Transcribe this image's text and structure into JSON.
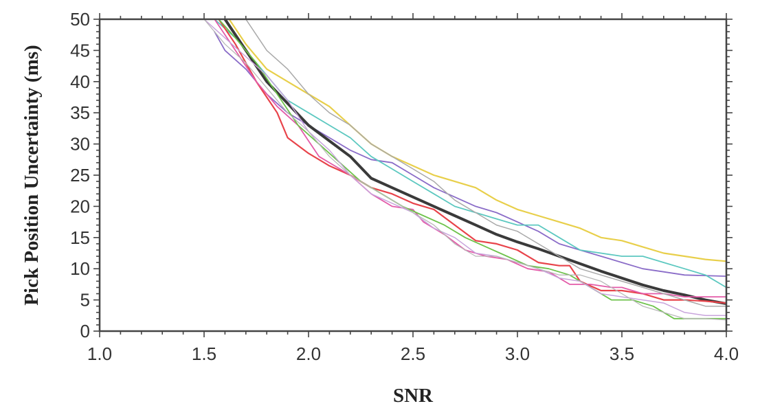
{
  "chart_data": {
    "type": "line",
    "title": "",
    "xlabel": "SNR",
    "ylabel": "Pick Position Uncertainty (ms)",
    "xlim": [
      1.0,
      4.0
    ],
    "ylim": [
      0,
      50
    ],
    "x_ticks": [
      "1.0",
      "1.5",
      "2.0",
      "2.5",
      "3.0",
      "3.5",
      "4.0"
    ],
    "y_ticks": [
      "0",
      "5",
      "10",
      "15",
      "20",
      "25",
      "30",
      "35",
      "40",
      "45",
      "50"
    ],
    "grid": false,
    "legend": "none",
    "series": [
      {
        "color": "#e8cf4a",
        "width": 2.2,
        "points": [
          [
            1.62,
            50
          ],
          [
            1.7,
            46
          ],
          [
            1.8,
            42
          ],
          [
            1.9,
            40
          ],
          [
            2.0,
            38
          ],
          [
            2.1,
            36
          ],
          [
            2.2,
            33
          ],
          [
            2.3,
            30
          ],
          [
            2.4,
            28
          ],
          [
            2.5,
            26.5
          ],
          [
            2.6,
            25
          ],
          [
            2.7,
            24
          ],
          [
            2.8,
            23
          ],
          [
            2.9,
            21
          ],
          [
            3.0,
            19.5
          ],
          [
            3.1,
            18.5
          ],
          [
            3.2,
            17.5
          ],
          [
            3.3,
            16.5
          ],
          [
            3.4,
            15
          ],
          [
            3.5,
            14.5
          ],
          [
            3.6,
            13.5
          ],
          [
            3.7,
            12.5
          ],
          [
            3.8,
            12
          ],
          [
            3.9,
            11.5
          ],
          [
            4.0,
            11.2
          ]
        ]
      },
      {
        "color": "#8a6cc8",
        "width": 1.8,
        "points": [
          [
            1.55,
            48
          ],
          [
            1.6,
            45
          ],
          [
            1.7,
            42
          ],
          [
            1.8,
            38
          ],
          [
            1.9,
            35
          ],
          [
            2.0,
            33
          ],
          [
            2.1,
            31
          ],
          [
            2.2,
            29
          ],
          [
            2.3,
            27.5
          ],
          [
            2.4,
            27
          ],
          [
            2.5,
            25
          ],
          [
            2.6,
            23
          ],
          [
            2.7,
            21.5
          ],
          [
            2.8,
            20
          ],
          [
            2.9,
            19
          ],
          [
            3.0,
            17.5
          ],
          [
            3.1,
            16
          ],
          [
            3.2,
            14
          ],
          [
            3.3,
            13
          ],
          [
            3.4,
            12
          ],
          [
            3.5,
            11
          ],
          [
            3.6,
            10
          ],
          [
            3.7,
            9.5
          ],
          [
            3.8,
            9
          ],
          [
            4.0,
            8.8
          ]
        ]
      },
      {
        "color": "#5cc8c0",
        "width": 1.8,
        "points": [
          [
            1.55,
            50
          ],
          [
            1.65,
            47
          ],
          [
            1.8,
            41
          ],
          [
            1.9,
            37
          ],
          [
            2.0,
            35
          ],
          [
            2.1,
            33
          ],
          [
            2.2,
            31
          ],
          [
            2.3,
            28
          ],
          [
            2.4,
            26
          ],
          [
            2.5,
            24
          ],
          [
            2.6,
            22
          ],
          [
            2.7,
            20
          ],
          [
            2.8,
            19
          ],
          [
            2.9,
            18
          ],
          [
            3.0,
            17
          ],
          [
            3.1,
            17
          ],
          [
            3.2,
            15
          ],
          [
            3.3,
            13
          ],
          [
            3.4,
            12.5
          ],
          [
            3.5,
            12
          ],
          [
            3.6,
            12
          ],
          [
            3.7,
            11
          ],
          [
            3.8,
            10
          ],
          [
            3.9,
            9
          ],
          [
            4.0,
            7
          ]
        ]
      },
      {
        "color": "#3a3a3a",
        "width": 4.0,
        "points": [
          [
            1.6,
            50
          ],
          [
            1.7,
            45
          ],
          [
            1.8,
            40
          ],
          [
            1.9,
            36.5
          ],
          [
            2.0,
            33
          ],
          [
            2.1,
            30.5
          ],
          [
            2.2,
            28
          ],
          [
            2.3,
            24.5
          ],
          [
            2.4,
            23
          ],
          [
            2.5,
            21.5
          ],
          [
            2.6,
            20
          ],
          [
            2.7,
            18.5
          ],
          [
            2.8,
            17
          ],
          [
            2.9,
            15.5
          ],
          [
            3.0,
            14.3
          ],
          [
            3.1,
            13.2
          ],
          [
            3.2,
            12
          ],
          [
            3.3,
            10.8
          ],
          [
            3.4,
            9.6
          ],
          [
            3.5,
            8.5
          ],
          [
            3.6,
            7.4
          ],
          [
            3.7,
            6.5
          ],
          [
            3.8,
            5.8
          ],
          [
            3.9,
            5
          ],
          [
            4.0,
            4.4
          ]
        ]
      },
      {
        "color": "#e8434a",
        "width": 2.2,
        "points": [
          [
            1.57,
            50
          ],
          [
            1.65,
            46
          ],
          [
            1.75,
            40
          ],
          [
            1.85,
            35
          ],
          [
            1.9,
            31
          ],
          [
            2.0,
            28.5
          ],
          [
            2.1,
            26.5
          ],
          [
            2.2,
            25
          ],
          [
            2.3,
            23
          ],
          [
            2.4,
            22
          ],
          [
            2.5,
            20.5
          ],
          [
            2.6,
            19.5
          ],
          [
            2.7,
            17
          ],
          [
            2.8,
            14.5
          ],
          [
            2.9,
            14
          ],
          [
            3.0,
            13
          ],
          [
            3.1,
            11
          ],
          [
            3.2,
            10.5
          ],
          [
            3.25,
            10.5
          ],
          [
            3.3,
            8
          ],
          [
            3.4,
            6.5
          ],
          [
            3.5,
            6.5
          ],
          [
            3.6,
            6
          ],
          [
            3.7,
            5
          ],
          [
            3.8,
            5
          ],
          [
            3.9,
            4.8
          ],
          [
            4.0,
            4.5
          ]
        ]
      },
      {
        "color": "#e35aa8",
        "width": 1.8,
        "points": [
          [
            1.55,
            50
          ],
          [
            1.65,
            45
          ],
          [
            1.75,
            40
          ],
          [
            1.85,
            36
          ],
          [
            1.95,
            33
          ],
          [
            2.05,
            28
          ],
          [
            2.15,
            26
          ],
          [
            2.2,
            25
          ],
          [
            2.3,
            22
          ],
          [
            2.4,
            20
          ],
          [
            2.5,
            19.5
          ],
          [
            2.55,
            17.5
          ],
          [
            2.65,
            15.5
          ],
          [
            2.75,
            13
          ],
          [
            2.85,
            12
          ],
          [
            2.95,
            11.5
          ],
          [
            3.05,
            10
          ],
          [
            3.15,
            9.5
          ],
          [
            3.25,
            7.5
          ],
          [
            3.35,
            7.5
          ],
          [
            3.45,
            7
          ],
          [
            3.5,
            7
          ],
          [
            3.6,
            6
          ],
          [
            3.7,
            6
          ],
          [
            3.8,
            5.5
          ],
          [
            3.9,
            5.5
          ],
          [
            4.0,
            5.5
          ]
        ]
      },
      {
        "color": "#6dc24a",
        "width": 1.8,
        "points": [
          [
            1.57,
            50
          ],
          [
            1.65,
            47
          ],
          [
            1.75,
            43
          ],
          [
            1.85,
            38
          ],
          [
            1.95,
            33
          ],
          [
            2.05,
            30
          ],
          [
            2.15,
            27
          ],
          [
            2.25,
            24
          ],
          [
            2.35,
            22
          ],
          [
            2.45,
            20
          ],
          [
            2.55,
            18.5
          ],
          [
            2.65,
            17
          ],
          [
            2.75,
            15
          ],
          [
            2.85,
            13.5
          ],
          [
            2.95,
            12
          ],
          [
            3.05,
            10.5
          ],
          [
            3.15,
            10
          ],
          [
            3.25,
            9
          ],
          [
            3.35,
            7
          ],
          [
            3.45,
            5
          ],
          [
            3.55,
            5
          ],
          [
            3.65,
            4
          ],
          [
            3.75,
            2
          ],
          [
            3.85,
            2
          ],
          [
            4.0,
            2
          ]
        ]
      },
      {
        "color": "#c8a4dc",
        "width": 1.5,
        "points": [
          [
            1.5,
            50
          ],
          [
            1.6,
            47
          ],
          [
            1.7,
            44
          ],
          [
            1.8,
            41
          ],
          [
            1.9,
            37
          ],
          [
            2.0,
            32
          ],
          [
            2.1,
            29
          ],
          [
            2.2,
            25
          ],
          [
            2.3,
            22
          ],
          [
            2.4,
            20.5
          ],
          [
            2.5,
            19
          ],
          [
            2.6,
            16.5
          ],
          [
            2.7,
            15
          ],
          [
            2.8,
            12.5
          ],
          [
            2.9,
            12
          ],
          [
            3.0,
            11
          ],
          [
            3.1,
            10
          ],
          [
            3.2,
            8.5
          ],
          [
            3.3,
            8
          ],
          [
            3.4,
            6
          ],
          [
            3.5,
            5.5
          ],
          [
            3.6,
            5
          ],
          [
            3.7,
            4.5
          ],
          [
            3.8,
            3
          ],
          [
            3.9,
            2.5
          ],
          [
            4.0,
            2.5
          ]
        ]
      },
      {
        "color": "#a9a9a9",
        "width": 1.5,
        "points": [
          [
            1.7,
            50
          ],
          [
            1.8,
            45
          ],
          [
            1.9,
            42
          ],
          [
            2.0,
            38
          ],
          [
            2.1,
            35
          ],
          [
            2.2,
            33
          ],
          [
            2.3,
            30
          ],
          [
            2.4,
            28
          ],
          [
            2.5,
            26
          ],
          [
            2.6,
            24
          ],
          [
            2.7,
            21
          ],
          [
            2.8,
            19
          ],
          [
            2.9,
            17
          ],
          [
            3.0,
            16
          ],
          [
            3.1,
            14
          ],
          [
            3.2,
            12
          ],
          [
            3.3,
            10
          ],
          [
            3.4,
            9
          ],
          [
            3.5,
            8
          ],
          [
            3.6,
            7
          ],
          [
            3.7,
            6
          ],
          [
            3.8,
            5
          ],
          [
            3.9,
            4
          ],
          [
            4.0,
            4
          ]
        ]
      },
      {
        "color": "#b8b8b8",
        "width": 1.3,
        "points": [
          [
            1.5,
            50
          ],
          [
            1.6,
            46
          ],
          [
            1.7,
            43
          ],
          [
            1.8,
            39
          ],
          [
            1.9,
            35
          ],
          [
            2.0,
            32
          ],
          [
            2.1,
            28
          ],
          [
            2.2,
            25
          ],
          [
            2.3,
            23
          ],
          [
            2.4,
            21
          ],
          [
            2.5,
            19
          ],
          [
            2.6,
            17
          ],
          [
            2.7,
            14
          ],
          [
            2.8,
            12
          ],
          [
            2.9,
            12
          ],
          [
            3.0,
            11
          ],
          [
            3.1,
            10
          ],
          [
            3.2,
            9
          ],
          [
            3.3,
            9
          ],
          [
            3.4,
            8
          ],
          [
            3.5,
            6
          ],
          [
            3.6,
            4
          ],
          [
            3.7,
            3
          ],
          [
            3.8,
            2
          ],
          [
            3.9,
            2
          ],
          [
            4.0,
            1.8
          ]
        ]
      }
    ]
  }
}
